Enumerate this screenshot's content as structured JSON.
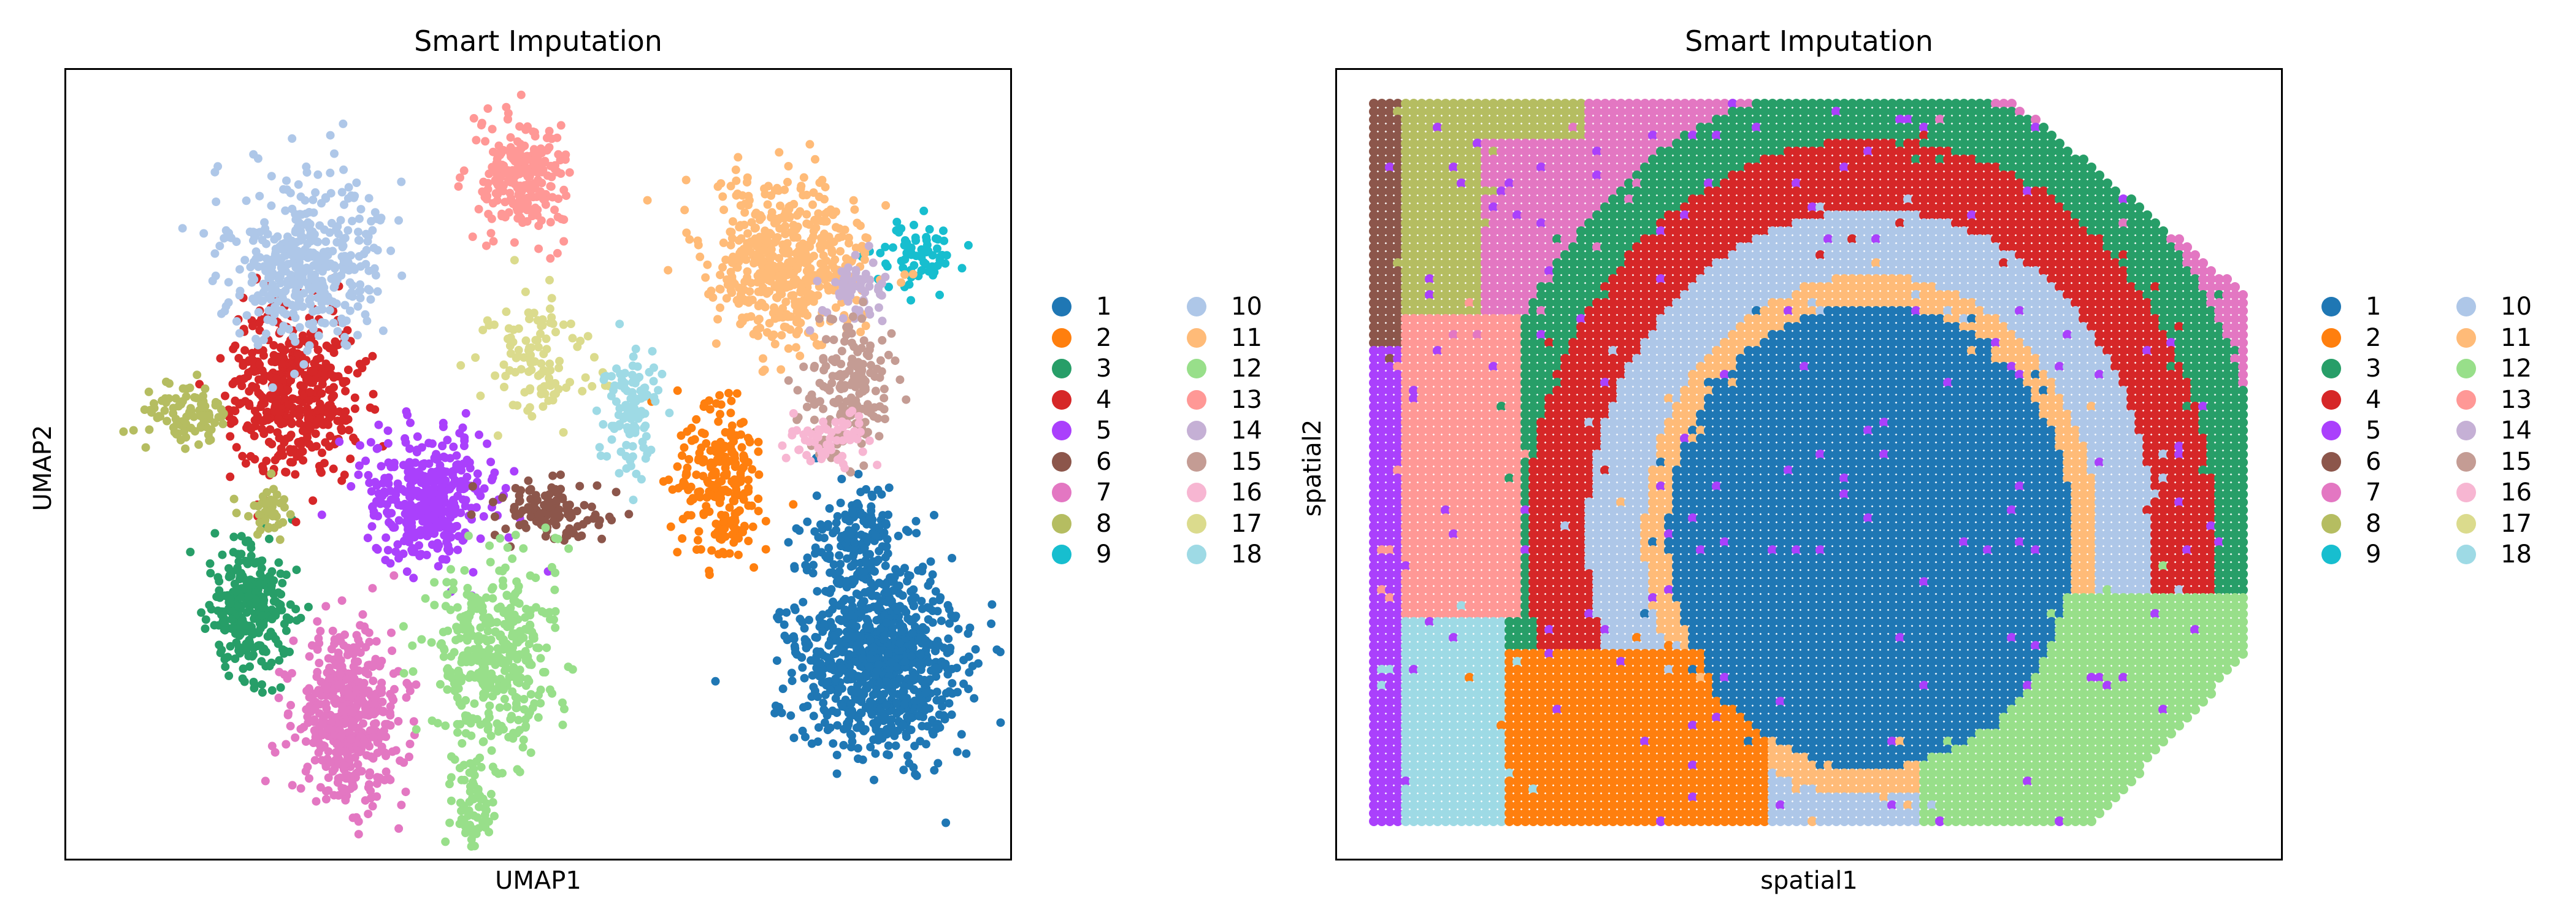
{
  "chart_data": [
    {
      "type": "scatter",
      "title": "Smart Imputation",
      "xlabel": "UMAP1",
      "ylabel": "UMAP2",
      "grid": false,
      "legend_placement": "right",
      "clusters": [
        "1",
        "2",
        "3",
        "4",
        "5",
        "6",
        "7",
        "8",
        "9",
        "10",
        "11",
        "12",
        "13",
        "14",
        "15",
        "16",
        "17",
        "18"
      ],
      "colors": [
        "#1f77b4",
        "#ff7f0e",
        "#279e68",
        "#d62728",
        "#aa40fc",
        "#8c564b",
        "#e377c2",
        "#b5bd61",
        "#17becf",
        "#aec7e8",
        "#ffbb78",
        "#98df8a",
        "#ff9896",
        "#c5b0d5",
        "#c49c94",
        "#f7b6d2",
        "#dbdb8d",
        "#9edae5"
      ]
    },
    {
      "type": "scatter",
      "title": "Smart Imputation",
      "xlabel": "spatial1",
      "ylabel": "spatial2",
      "grid": false,
      "legend_placement": "right",
      "clusters": [
        "1",
        "2",
        "3",
        "4",
        "5",
        "6",
        "7",
        "8",
        "9",
        "10",
        "11",
        "12",
        "13",
        "14",
        "15",
        "16",
        "17",
        "18"
      ],
      "colors": [
        "#1f77b4",
        "#ff7f0e",
        "#279e68",
        "#d62728",
        "#aa40fc",
        "#8c564b",
        "#e377c2",
        "#b5bd61",
        "#17becf",
        "#aec7e8",
        "#ffbb78",
        "#98df8a",
        "#ff9896",
        "#c5b0d5",
        "#c49c94",
        "#f7b6d2",
        "#dbdb8d",
        "#9edae5"
      ]
    }
  ]
}
